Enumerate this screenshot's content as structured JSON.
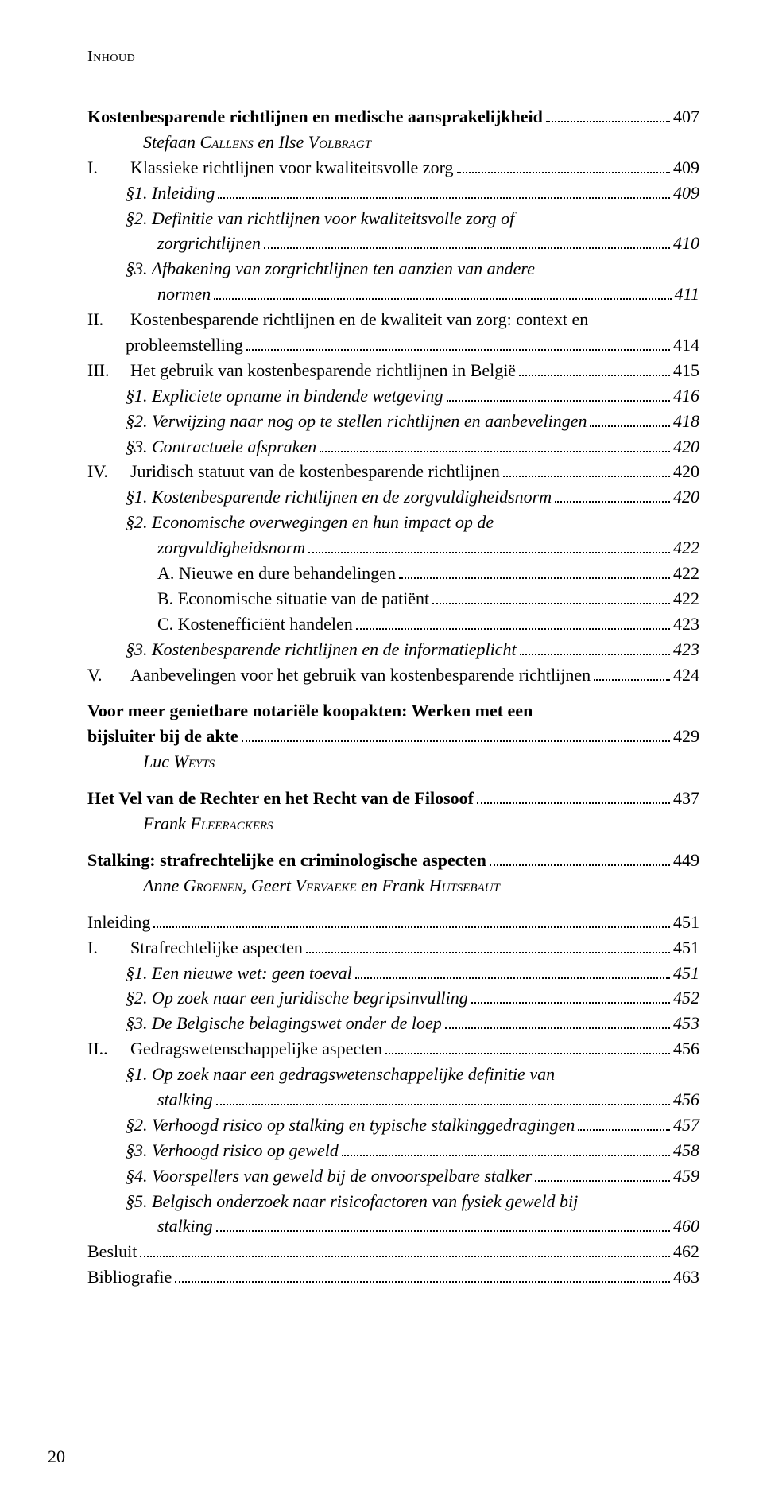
{
  "header": "Inhoud",
  "pageNumber": "20",
  "entries": [
    {
      "type": "line",
      "cls": "lv0 bold",
      "marker": "",
      "label": "Kostenbesparende richtlijnen en medische aansprakelijkheid",
      "page": "407"
    },
    {
      "type": "author",
      "parts": [
        {
          "t": "Stefaan "
        },
        {
          "t": "Callens",
          "sc": true
        },
        {
          "t": " en Ilse "
        },
        {
          "t": "Volbragt",
          "sc": true
        }
      ]
    },
    {
      "type": "line",
      "cls": "lv1",
      "marker": "I.",
      "label": "Klassieke richtlijnen voor kwaliteitsvolle zorg",
      "page": "409"
    },
    {
      "type": "line",
      "cls": "lv2 italic",
      "marker": "",
      "label": "§1. Inleiding",
      "page": "409"
    },
    {
      "type": "line",
      "cls": "lv2 italic",
      "marker": "",
      "label": "§2. Definitie van richtlijnen voor kwaliteitsvolle zorg of",
      "nopage": true
    },
    {
      "type": "line",
      "cls": "lv2-cont italic",
      "marker": "",
      "label": "zorgrichtlijnen",
      "page": "410"
    },
    {
      "type": "line",
      "cls": "lv2 italic",
      "marker": "",
      "label": "§3. Afbakening van zorgrichtlijnen ten aanzien van andere",
      "nopage": true
    },
    {
      "type": "line",
      "cls": "lv2-cont italic",
      "marker": "",
      "label": "normen",
      "page": "411"
    },
    {
      "type": "line",
      "cls": "lv1",
      "marker": "II.",
      "label": "Kostenbesparende richtlijnen en de kwaliteit van zorg: context en",
      "nopage": true
    },
    {
      "type": "line",
      "cls": "lv1-cont",
      "marker": "",
      "label": "probleemstelling",
      "page": "414"
    },
    {
      "type": "line",
      "cls": "lv1",
      "marker": "III.",
      "label": "Het gebruik van kostenbesparende richtlijnen in België",
      "page": "415"
    },
    {
      "type": "line",
      "cls": "lv2 italic",
      "marker": "",
      "label": "§1. Expliciete opname in bindende wetgeving",
      "page": "416"
    },
    {
      "type": "line",
      "cls": "lv2 italic",
      "marker": "",
      "label": "§2. Verwijzing naar nog op te stellen richtlijnen en aanbevelingen",
      "page": "418"
    },
    {
      "type": "line",
      "cls": "lv2 italic",
      "marker": "",
      "label": "§3. Contractuele afspraken",
      "page": "420"
    },
    {
      "type": "line",
      "cls": "lv1",
      "marker": "IV.",
      "label": "Juridisch statuut van de kostenbesparende richtlijnen",
      "page": "420"
    },
    {
      "type": "line",
      "cls": "lv2 italic",
      "marker": "",
      "label": "§1. Kostenbesparende richtlijnen en de zorgvuldigheidsnorm",
      "page": "420"
    },
    {
      "type": "line",
      "cls": "lv2 italic",
      "marker": "",
      "label": "§2. Economische overwegingen en hun impact op de",
      "nopage": true
    },
    {
      "type": "line",
      "cls": "lv2-cont italic",
      "marker": "",
      "label": "zorgvuldigheidsnorm",
      "page": "422"
    },
    {
      "type": "line",
      "cls": "lv3",
      "marker": "",
      "label": "A. Nieuwe en dure behandelingen",
      "page": "422"
    },
    {
      "type": "line",
      "cls": "lv3",
      "marker": "",
      "label": "B. Economische situatie van de patiënt",
      "page": "422"
    },
    {
      "type": "line",
      "cls": "lv3",
      "marker": "",
      "label": "C. Kostenefficiënt handelen",
      "page": "423"
    },
    {
      "type": "line",
      "cls": "lv2 italic",
      "marker": "",
      "label": "§3. Kostenbesparende richtlijnen en de informatieplicht",
      "page": "423"
    },
    {
      "type": "line",
      "cls": "lv1",
      "marker": "V.",
      "label": "Aanbevelingen voor het gebruik van kostenbesparende richtlijnen",
      "page": "424"
    },
    {
      "type": "gap"
    },
    {
      "type": "line",
      "cls": "lv0 bold",
      "marker": "",
      "label": "Voor meer genietbare notariële koopakten: Werken met een",
      "nopage": true
    },
    {
      "type": "line",
      "cls": "lv0 bold",
      "marker": "",
      "label": "bijsluiter bij de akte",
      "page": "429"
    },
    {
      "type": "author",
      "parts": [
        {
          "t": "Luc "
        },
        {
          "t": "Weyts",
          "sc": true
        }
      ]
    },
    {
      "type": "gap"
    },
    {
      "type": "line",
      "cls": "lv0 bold",
      "marker": "",
      "label": "Het Vel van de Rechter en het Recht van de Filosoof",
      "page": "437"
    },
    {
      "type": "author",
      "parts": [
        {
          "t": "Frank "
        },
        {
          "t": "Fleerackers",
          "sc": true
        }
      ]
    },
    {
      "type": "gap"
    },
    {
      "type": "line",
      "cls": "lv0 bold",
      "marker": "",
      "label": "Stalking: strafrechtelijke en criminologische aspecten",
      "page": "449"
    },
    {
      "type": "author",
      "parts": [
        {
          "t": "Anne "
        },
        {
          "t": "Groenen",
          "sc": true
        },
        {
          "t": ", Geert "
        },
        {
          "t": "Vervaeke",
          "sc": true
        },
        {
          "t": " en Frank "
        },
        {
          "t": "Hutsebaut",
          "sc": true
        }
      ]
    },
    {
      "type": "gap"
    },
    {
      "type": "line",
      "cls": "lv0",
      "marker": "",
      "label": "Inleiding",
      "page": "451"
    },
    {
      "type": "line",
      "cls": "lv1",
      "marker": "I.",
      "label": "Strafrechtelijke aspecten",
      "page": "451"
    },
    {
      "type": "line",
      "cls": "lv2 italic",
      "marker": "",
      "label": "§1. Een nieuwe wet: geen toeval",
      "page": "451"
    },
    {
      "type": "line",
      "cls": "lv2 italic",
      "marker": "",
      "label": "§2. Op zoek naar een juridische begripsinvulling",
      "page": "452"
    },
    {
      "type": "line",
      "cls": "lv2 italic",
      "marker": "",
      "label": "§3. De Belgische belagingswet onder de loep",
      "page": "453"
    },
    {
      "type": "line",
      "cls": "lv1",
      "marker": "II..",
      "label": "Gedragswetenschappelijke aspecten",
      "page": "456"
    },
    {
      "type": "line",
      "cls": "lv2 italic",
      "marker": "",
      "label": "§1. Op zoek naar een gedragswetenschappelijke definitie van",
      "nopage": true
    },
    {
      "type": "line",
      "cls": "lv2-cont italic",
      "marker": "",
      "label": "stalking",
      "page": "456"
    },
    {
      "type": "line",
      "cls": "lv2 italic",
      "marker": "",
      "label": "§2. Verhoogd risico op stalking en typische stalkinggedragingen",
      "page": "457"
    },
    {
      "type": "line",
      "cls": "lv2 italic",
      "marker": "",
      "label": "§3. Verhoogd risico op geweld",
      "page": "458"
    },
    {
      "type": "line",
      "cls": "lv2 italic",
      "marker": "",
      "label": "§4. Voorspellers van geweld bij de onvoorspelbare stalker",
      "page": "459"
    },
    {
      "type": "line",
      "cls": "lv2 italic",
      "marker": "",
      "label": "§5. Belgisch onderzoek naar risicofactoren van fysiek geweld bij",
      "nopage": true
    },
    {
      "type": "line",
      "cls": "lv2-cont italic",
      "marker": "",
      "label": "stalking",
      "page": "460"
    },
    {
      "type": "line",
      "cls": "lv0",
      "marker": "",
      "label": "Besluit",
      "page": "462"
    },
    {
      "type": "line",
      "cls": "lv0",
      "marker": "",
      "label": "Bibliografie",
      "page": "463"
    }
  ]
}
